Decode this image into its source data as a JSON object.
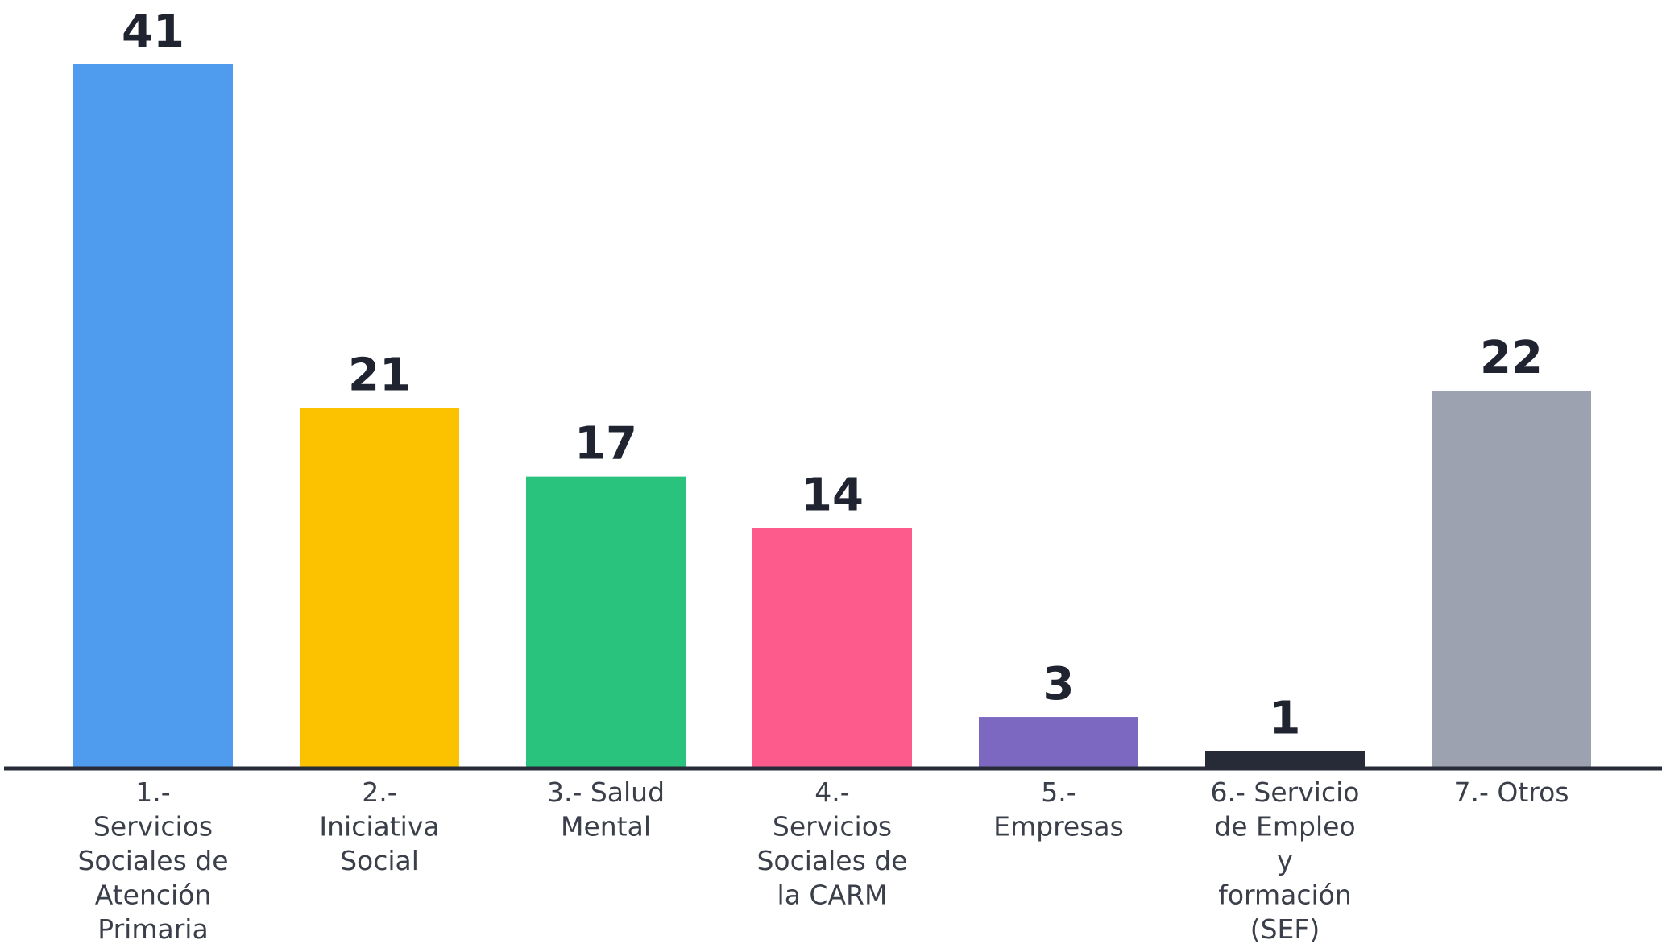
{
  "chart_data": {
    "type": "bar",
    "title": "",
    "xlabel": "",
    "ylabel": "",
    "ylim": [
      0,
      41
    ],
    "grid": false,
    "legend": "none",
    "categories": [
      "1.- Servicios Sociales de Atención Primaria",
      "2.- Iniciativa Social",
      "3.- Salud Mental",
      "4.- Servicios Sociales de la CARM",
      "5.- Empresas",
      "6.- Servicio de Empleo y formación (SEF)",
      "7.- Otros"
    ],
    "category_lines": [
      [
        "1.-",
        "Servicios",
        "Sociales de",
        "Atención",
        "Primaria"
      ],
      [
        "2.-",
        "Iniciativa",
        "Social"
      ],
      [
        "3.- Salud",
        "Mental"
      ],
      [
        "4.-",
        "Servicios",
        "Sociales de",
        "la CARM"
      ],
      [
        "5.-",
        "Empresas"
      ],
      [
        "6.- Servicio",
        "de Empleo",
        "y",
        "formación",
        "(SEF)"
      ],
      [
        "7.- Otros"
      ]
    ],
    "values": [
      41,
      21,
      17,
      14,
      3,
      1,
      22
    ],
    "colors": [
      "#4f9bee",
      "#fcc200",
      "#2ac37d",
      "#fd5b8c",
      "#7c68c0",
      "#262b37",
      "#9ca2b0"
    ],
    "axis_color": "#262b37"
  }
}
